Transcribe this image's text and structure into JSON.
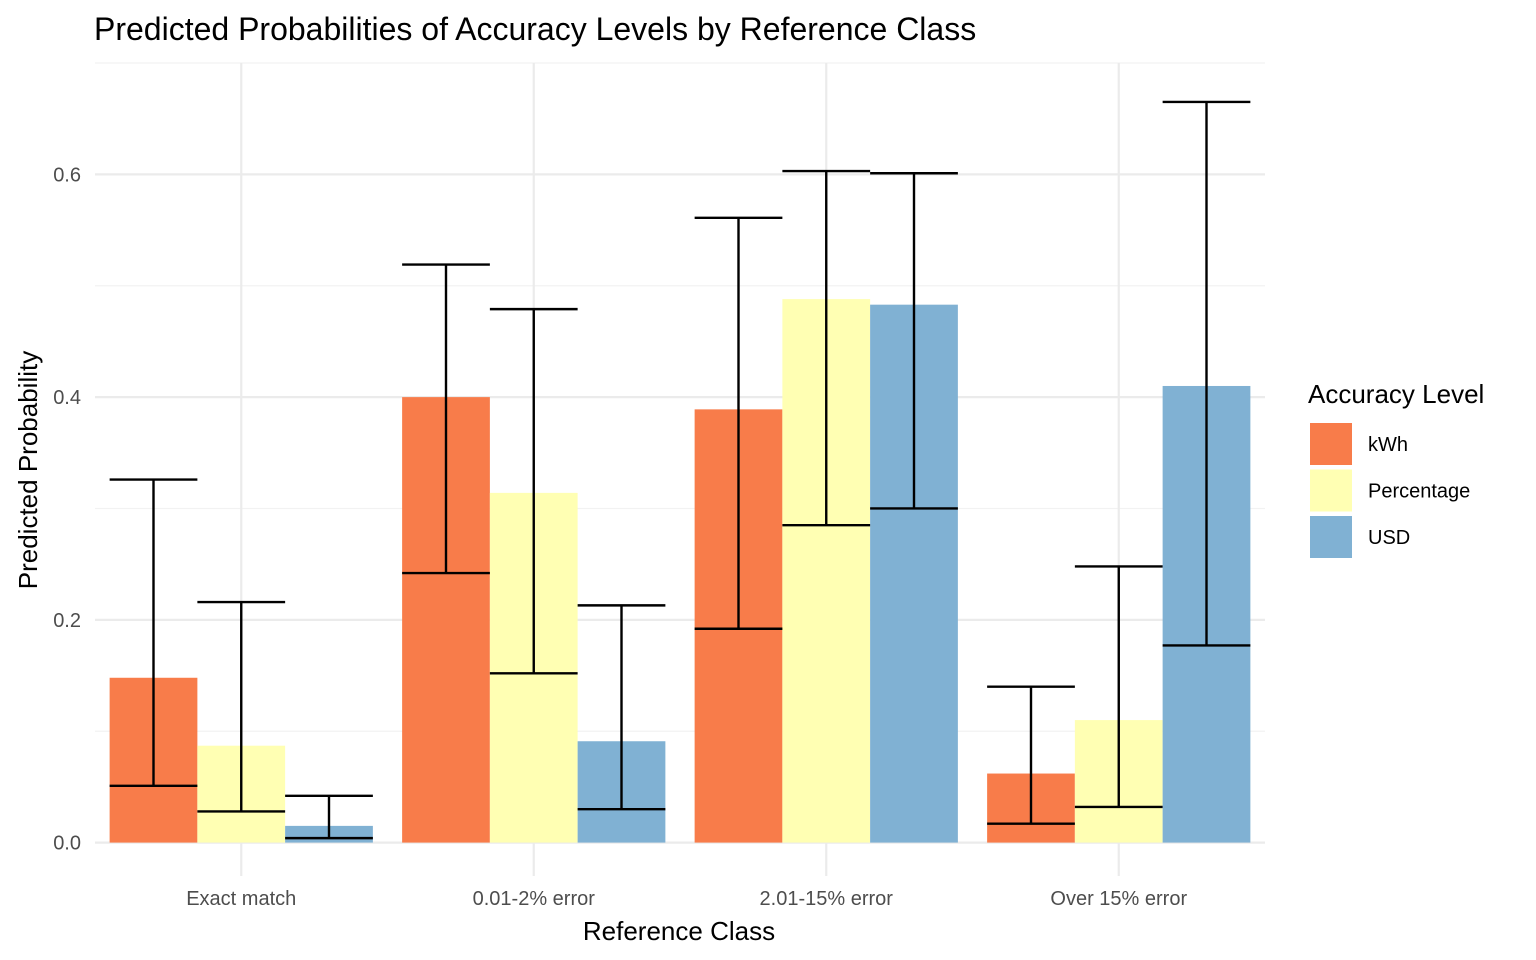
{
  "chart_data": {
    "type": "bar",
    "title": "Predicted Probabilities of Accuracy Levels by Reference Class",
    "xlabel": "Reference Class",
    "ylabel": "Predicted Probability",
    "categories": [
      "Exact match",
      "0.01-2% error",
      "2.01-15% error",
      "Over 15% error"
    ],
    "ylim": [
      -0.03,
      0.7
    ],
    "yticks": [
      0.0,
      0.2,
      0.4,
      0.6
    ],
    "ytick_labels": [
      "0.0",
      "0.2",
      "0.4",
      "0.6"
    ],
    "legend": {
      "title": "Accuracy Level",
      "position": "right"
    },
    "series": [
      {
        "name": "kWh",
        "color": "#f87c4a",
        "values": [
          0.148,
          0.4,
          0.389,
          0.062
        ],
        "lower": [
          0.051,
          0.242,
          0.192,
          0.017
        ],
        "upper": [
          0.326,
          0.519,
          0.561,
          0.14
        ]
      },
      {
        "name": "Percentage",
        "color": "#ffffb3",
        "values": [
          0.087,
          0.314,
          0.488,
          0.11
        ],
        "lower": [
          0.028,
          0.152,
          0.285,
          0.032
        ],
        "upper": [
          0.216,
          0.479,
          0.603,
          0.248
        ]
      },
      {
        "name": "USD",
        "color": "#80b1d3",
        "values": [
          0.015,
          0.091,
          0.483,
          0.41
        ],
        "lower": [
          0.004,
          0.03,
          0.3,
          0.177
        ],
        "upper": [
          0.042,
          0.213,
          0.601,
          0.665
        ]
      }
    ]
  }
}
